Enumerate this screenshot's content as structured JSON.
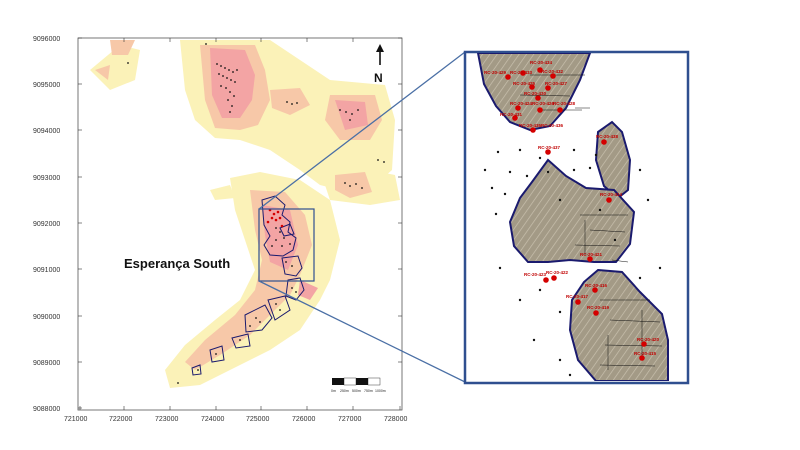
{
  "map": {
    "title": "Esperança South",
    "north_label": "N",
    "y_ticks": [
      "9096000",
      "9095000",
      "9094000",
      "9093000",
      "9092000",
      "9091000",
      "9090000",
      "9089000",
      "9088000"
    ],
    "x_ticks": [
      "721000",
      "722000",
      "723000",
      "724000",
      "725000",
      "726000",
      "727000",
      "728000"
    ],
    "scale_labels": [
      "0m",
      "250m",
      "500m",
      "750m",
      "1000m"
    ]
  },
  "inset": {
    "hole_labels": [
      "RC-20-434",
      "RC-20-429",
      "RC-20-433",
      "RC-20-432",
      "RC-20-425",
      "RC-20-427",
      "RC-20-430",
      "RC-20-424",
      "RC-20-426",
      "RC-20-428",
      "RC-20-431",
      "RC-20-435",
      "RC-20-436",
      "RC-20-437",
      "RC-20-438",
      "RC-20-414",
      "RC-20-421",
      "RC-20-423",
      "RC-20-422",
      "RC-20-416",
      "RC-20-417",
      "RC-20-419",
      "RC-20-420",
      "RC-20-415"
    ]
  },
  "colors": {
    "frame": "#2f4f8f",
    "heat_low": "#fbf2b8",
    "heat_mid": "#f7c8a8",
    "heat_high": "#f3a4a4",
    "pit": "#a39a86",
    "pit_outline": "#1a1a6e",
    "drill_hole": "#d40000"
  }
}
